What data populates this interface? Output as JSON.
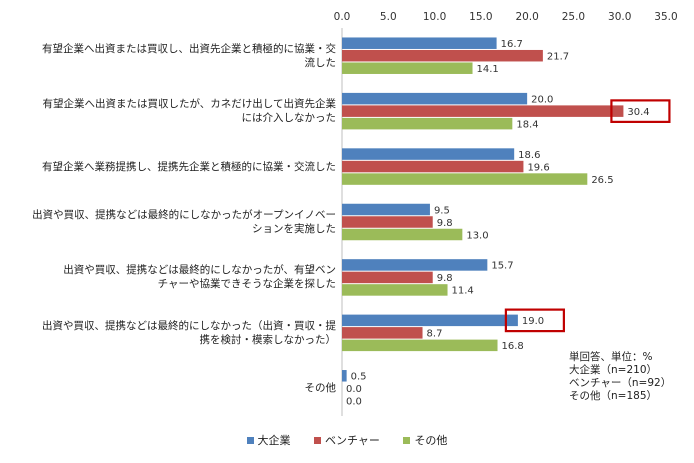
{
  "chart_data": {
    "type": "bar",
    "orientation": "horizontal",
    "categories": [
      [
        "有望企業へ出資または買収し、出資先企業と積極的に協業・交",
        "流した"
      ],
      [
        "有望企業へ出資または買収したが、カネだけ出して出資先企業",
        "には介入しなかった"
      ],
      [
        "有望企業へ業務提携し、提携先企業と積極的に協業・交流した"
      ],
      [
        "出資や買収、提携などは最終的にしなかったがオープンイノベー",
        "ションを実施した"
      ],
      [
        "出資や買収、提携などは最終的にしなかったが、有望ベン",
        "チャーや協業できそうな企業を探した"
      ],
      [
        "出資や買収、提携などは最終的にしなかった（出資・買収・提",
        "携を検討・模索しなかった）"
      ],
      [
        "その他"
      ]
    ],
    "series": [
      {
        "name": "大企業",
        "color": "#4f81bd",
        "values": [
          16.7,
          20.0,
          18.6,
          9.5,
          15.7,
          19.0,
          0.5
        ]
      },
      {
        "name": "ベンチャー",
        "color": "#c0504d",
        "values": [
          21.7,
          30.4,
          19.6,
          9.8,
          9.8,
          8.7,
          0.0
        ]
      },
      {
        "name": "その他",
        "color": "#9bbb59",
        "values": [
          14.1,
          18.4,
          26.5,
          13.0,
          11.4,
          16.8,
          0.0
        ]
      }
    ],
    "xlim": [
      0,
      35
    ],
    "xticks": [
      0,
      5,
      10,
      15,
      20,
      25,
      30,
      35
    ],
    "xtick_labels": [
      "0.0",
      "5.0",
      "10.0",
      "15.0",
      "20.0",
      "25.0",
      "30.0",
      "35.0"
    ],
    "highlights": [
      {
        "category_index": 1,
        "series_index": 1
      },
      {
        "category_index": 5,
        "series_index": 0
      }
    ],
    "highlight_color": "#c00000",
    "legend_position": "bottom"
  },
  "note": [
    "単回答、単位：%",
    "大企業（n=210）",
    "ベンチャー（n=92）",
    "その他（n=185）"
  ]
}
